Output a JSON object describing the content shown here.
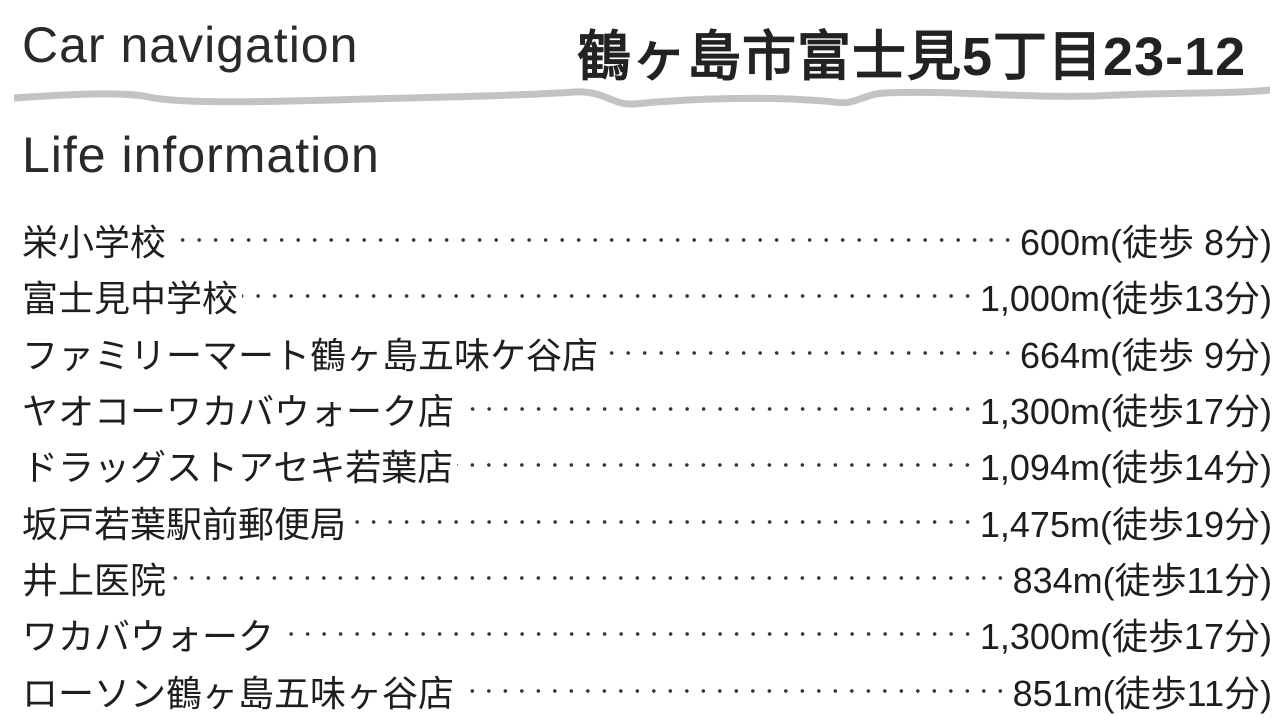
{
  "header": {
    "car_navigation_label": "Car navigation",
    "address": "鶴ヶ島市富士見5丁目23-12",
    "life_information_label": "Life information"
  },
  "facilities": [
    {
      "name": "栄小学校",
      "distance": "600m(徒歩 8分)"
    },
    {
      "name": "富士見中学校",
      "distance": "1,000m(徒歩13分)"
    },
    {
      "name": "ファミリーマート鶴ヶ島五味ケ谷店",
      "distance": "664m(徒歩 9分)"
    },
    {
      "name": "ヤオコーワカバウォーク店",
      "distance": "1,300m(徒歩17分)"
    },
    {
      "name": "ドラッグストアセキ若葉店",
      "distance": "1,094m(徒歩14分)"
    },
    {
      "name": "坂戸若葉駅前郵便局",
      "distance": "1,475m(徒歩19分)"
    },
    {
      "name": "井上医院",
      "distance": "834m(徒歩11分)"
    },
    {
      "name": "ワカバウォーク",
      "distance": "1,300m(徒歩17分)"
    },
    {
      "name": "ローソン鶴ヶ島五味ヶ谷店",
      "distance": "851m(徒歩11分)"
    }
  ]
}
